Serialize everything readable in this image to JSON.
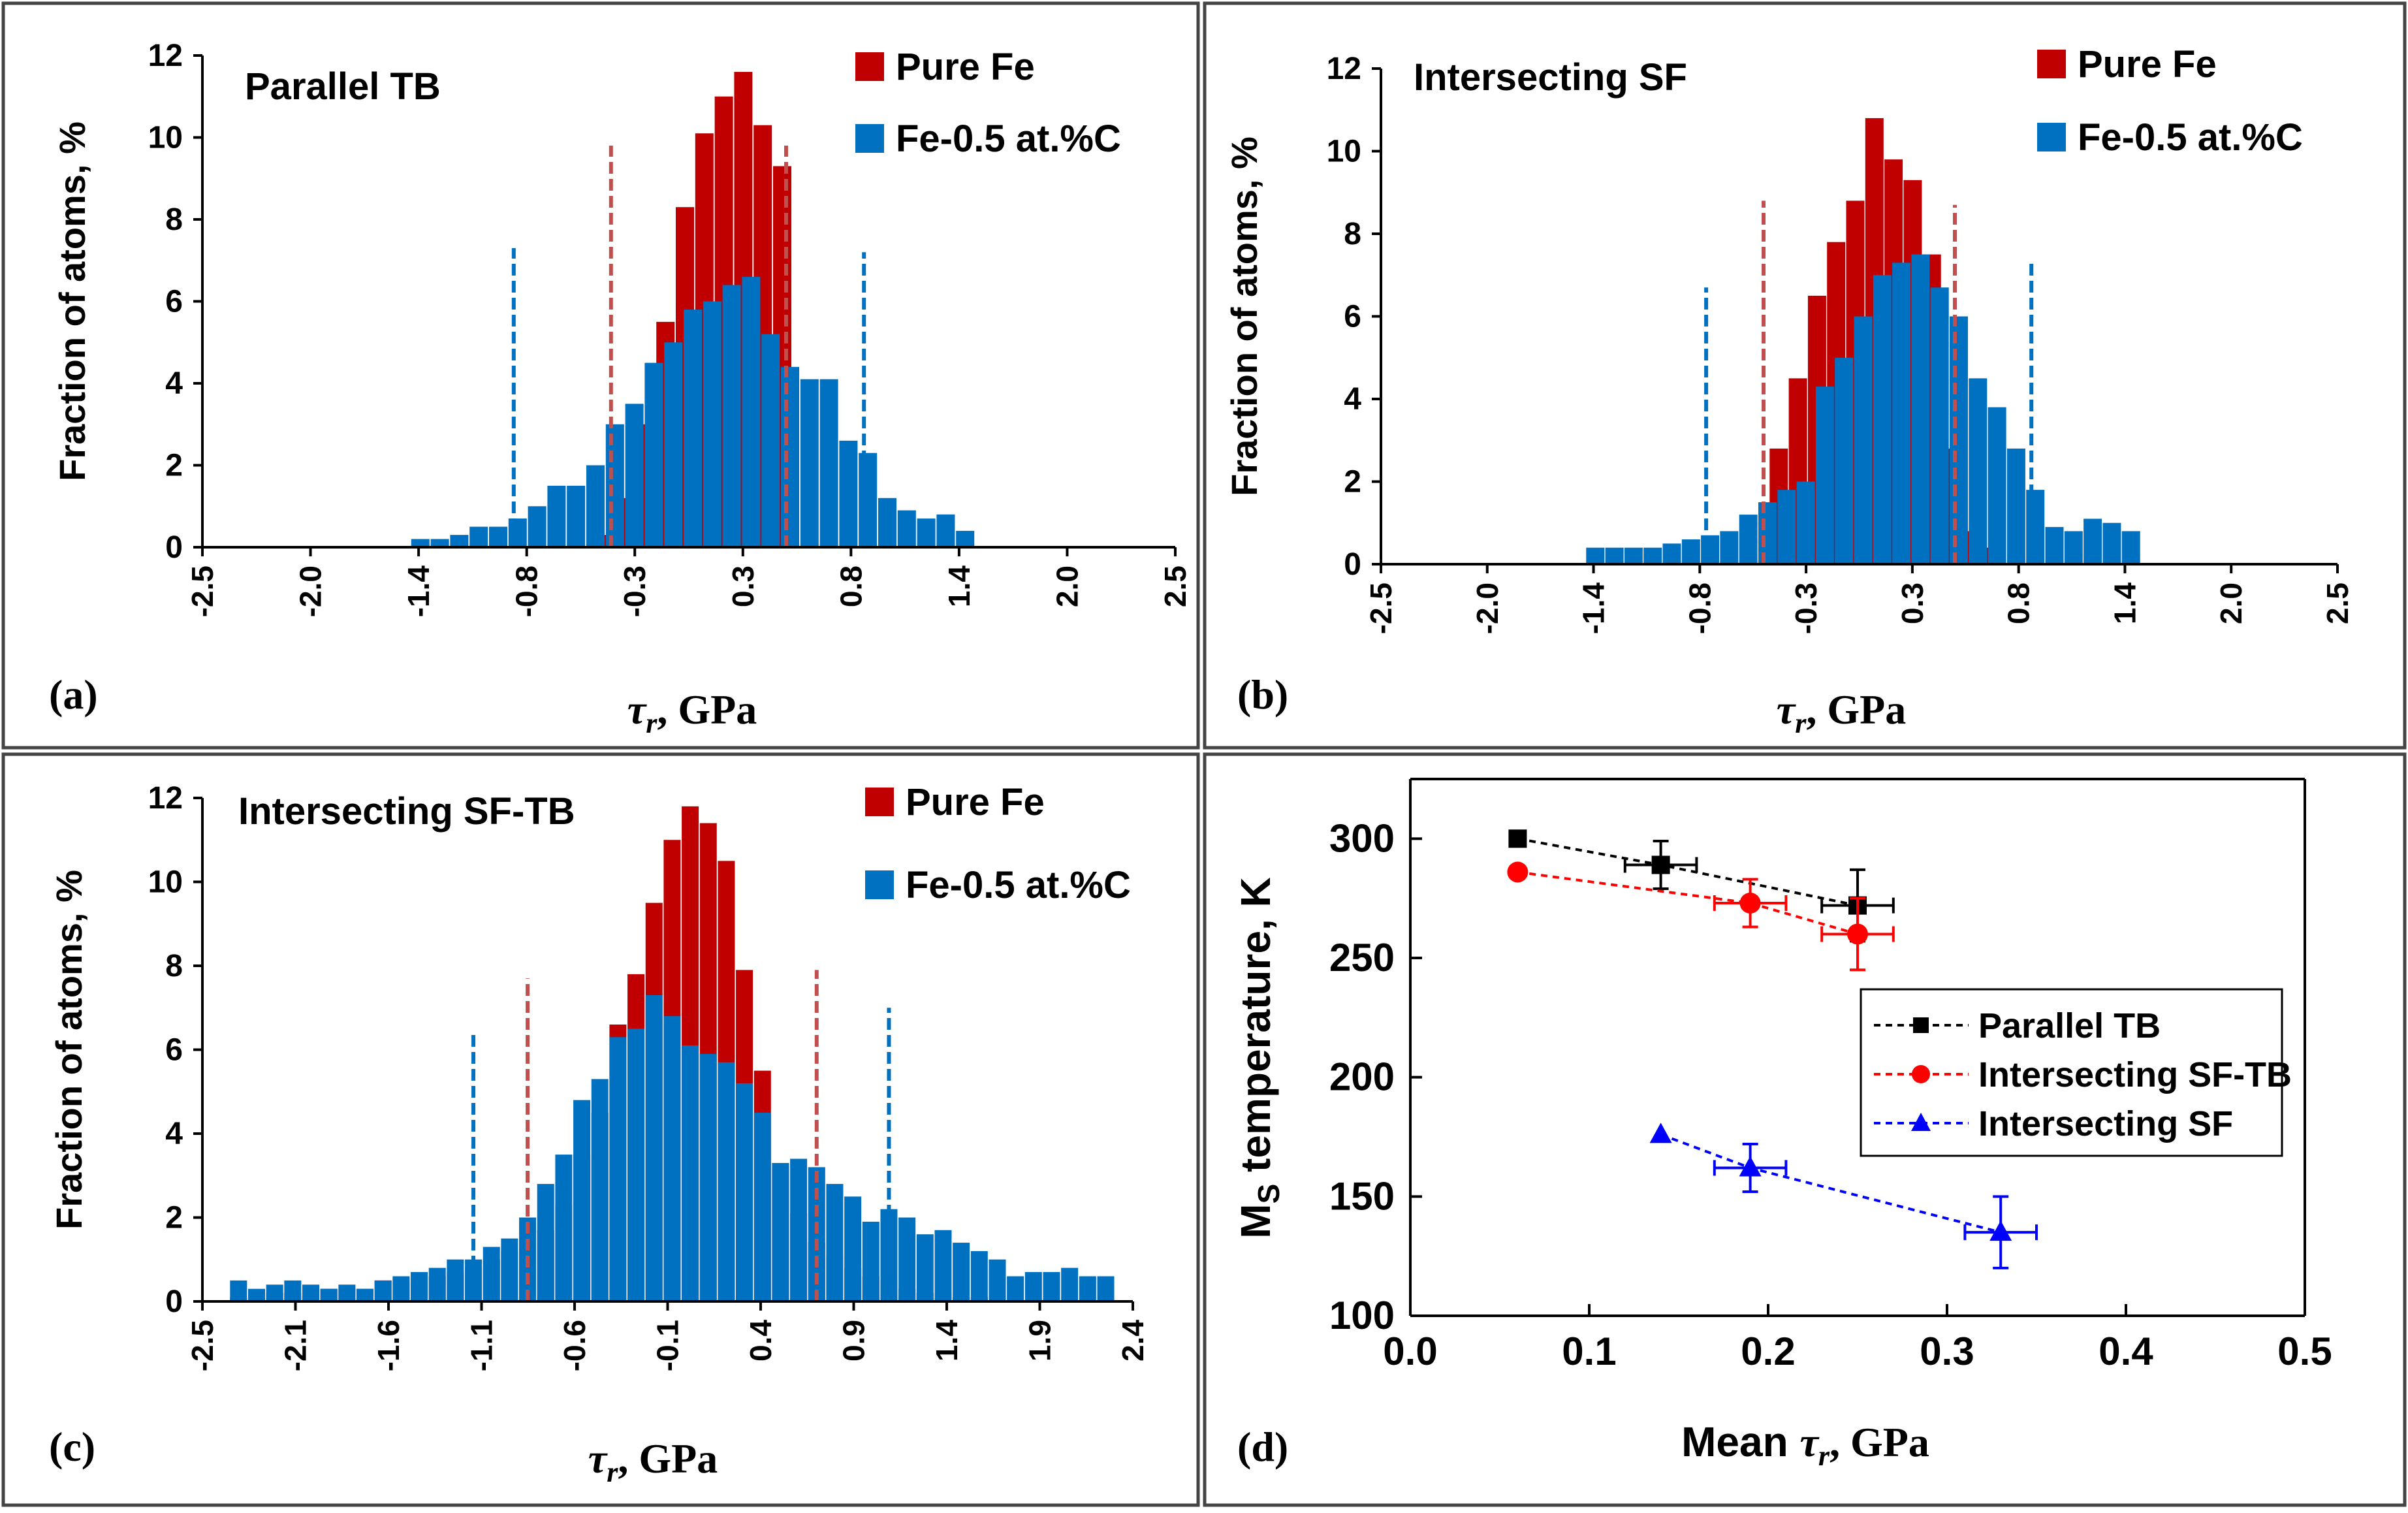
{
  "colors": {
    "pure": "#C00000",
    "alloy": "#0070C0",
    "pure_dash": "#C0504D",
    "alloy_dash": "#0070C0",
    "frame": "#444444"
  },
  "chart_data": [
    {
      "panel": "(a)",
      "type": "bar",
      "title": "Parallel TB",
      "xlabel_sym": "τ",
      "xlabel_sub": "r",
      "xlabel_unit": ", GPa",
      "ylabel": "Fraction of atoms, %",
      "ylim": [
        0,
        12
      ],
      "yticks": [
        "0",
        "2",
        "4",
        "6",
        "8",
        "10",
        "12"
      ],
      "xticks": [
        "-2.5",
        "-2.0",
        "-1.4",
        "-0.8",
        "-0.3",
        "0.3",
        "0.8",
        "1.4",
        "2.0",
        "2.5"
      ],
      "legend": [
        "Pure Fe",
        "Fe-0.5 at.%C"
      ],
      "series": [
        {
          "name": "Pure Fe",
          "x": [
            -0.4,
            -0.3,
            -0.2,
            -0.1,
            0.0,
            0.1,
            0.2,
            0.3,
            0.4,
            0.5
          ],
          "values": [
            0.3,
            1.2,
            3.0,
            5.5,
            8.3,
            10.1,
            11.0,
            11.6,
            10.3,
            9.3
          ]
        },
        {
          "name": "Fe-0.5 at.%C",
          "x": [
            -1.4,
            -1.3,
            -1.2,
            -1.1,
            -1.0,
            -0.9,
            -0.8,
            -0.7,
            -0.6,
            -0.5,
            -0.4,
            -0.3,
            -0.2,
            -0.1,
            0.0,
            0.1,
            0.2,
            0.3,
            0.4,
            0.5,
            0.6,
            0.7,
            0.8,
            0.9,
            1.0,
            1.1,
            1.2,
            1.3,
            1.4
          ],
          "values": [
            0.2,
            0.2,
            0.3,
            0.5,
            0.5,
            0.7,
            1.0,
            1.5,
            1.5,
            2.0,
            3.0,
            3.5,
            4.5,
            5.0,
            5.8,
            6.0,
            6.4,
            6.6,
            5.2,
            4.4,
            4.1,
            4.1,
            2.6,
            2.3,
            1.2,
            0.9,
            0.7,
            0.8,
            0.4
          ]
        }
      ],
      "dashed_lines": [
        {
          "x": -0.4,
          "color": "pure",
          "top": 9.8
        },
        {
          "x": 0.5,
          "color": "pure",
          "top": 9.8
        },
        {
          "x": -0.9,
          "color": "alloy",
          "top": 7.3
        },
        {
          "x": 0.9,
          "color": "alloy",
          "top": 7.2
        }
      ]
    },
    {
      "panel": "(b)",
      "type": "bar",
      "title": "Intersecting SF",
      "xlabel_sym": "τ",
      "xlabel_sub": "r",
      "xlabel_unit": ", GPa",
      "ylabel": "Fraction of atoms, %",
      "ylim": [
        0,
        12
      ],
      "yticks": [
        "0",
        "2",
        "4",
        "6",
        "8",
        "10",
        "12"
      ],
      "xticks": [
        "-2.5",
        "-2.0",
        "-1.4",
        "-0.8",
        "-0.3",
        "0.3",
        "0.8",
        "1.4",
        "2.0",
        "2.5"
      ],
      "legend": [
        "Pure Fe",
        "Fe-0.5 at.%C"
      ],
      "series": [
        {
          "name": "Pure Fe",
          "x": [
            -0.4,
            -0.3,
            -0.2,
            -0.1,
            0.0,
            0.1,
            0.2,
            0.3,
            0.4,
            0.5,
            0.6,
            0.7
          ],
          "values": [
            2.8,
            4.5,
            6.5,
            7.8,
            8.8,
            10.8,
            9.8,
            9.3,
            7.5,
            2.8,
            0.8,
            0.4
          ]
        },
        {
          "name": "Fe-0.5 at.%C",
          "x": [
            -1.4,
            -1.3,
            -1.2,
            -1.1,
            -1.0,
            -0.9,
            -0.8,
            -0.7,
            -0.6,
            -0.5,
            -0.4,
            -0.3,
            -0.2,
            -0.1,
            0.0,
            0.1,
            0.2,
            0.3,
            0.4,
            0.5,
            0.6,
            0.7,
            0.8,
            0.9,
            1.0,
            1.1,
            1.2,
            1.3,
            1.4
          ],
          "values": [
            0.4,
            0.4,
            0.4,
            0.4,
            0.5,
            0.6,
            0.7,
            0.8,
            1.2,
            1.5,
            1.8,
            2.0,
            4.3,
            5.0,
            6.0,
            7.0,
            7.3,
            7.5,
            6.7,
            6.0,
            4.5,
            3.8,
            2.8,
            1.8,
            0.9,
            0.8,
            1.1,
            1.0,
            0.8
          ]
        }
      ],
      "dashed_lines": [
        {
          "x": -0.5,
          "color": "pure",
          "top": 8.8
        },
        {
          "x": 0.5,
          "color": "pure",
          "top": 8.7
        },
        {
          "x": -0.8,
          "color": "alloy",
          "top": 6.7
        },
        {
          "x": 0.9,
          "color": "alloy",
          "top": 7.3
        }
      ]
    },
    {
      "panel": "(c)",
      "type": "bar",
      "title": "Intersecting SF-TB",
      "xlabel_sym": "τ",
      "xlabel_sub": "r",
      "xlabel_unit": ", GPa",
      "ylabel": "Fraction of atoms, %",
      "ylim": [
        0,
        12
      ],
      "yticks": [
        "0",
        "2",
        "4",
        "6",
        "8",
        "10",
        "12"
      ],
      "xticks": [
        "-2.5",
        "-2.1",
        "-1.6",
        "-1.1",
        "-0.6",
        "-0.1",
        "0.4",
        "0.9",
        "1.4",
        "1.9",
        "2.4"
      ],
      "legend": [
        "Pure Fe",
        "Fe-0.5 at.%C"
      ],
      "series": [
        {
          "name": "Pure Fe",
          "x": [
            -2.4,
            -2.3,
            -2.2,
            -2.1,
            -2.0,
            -1.9,
            -1.8,
            -1.7,
            -1.6,
            -1.5,
            -1.4,
            -1.3,
            -1.2,
            -1.1,
            -1.0,
            -0.9,
            -0.8,
            -0.7,
            -0.6,
            -0.5,
            -0.4,
            -0.3,
            -0.2,
            -0.1,
            0.0,
            0.1,
            0.2,
            0.3,
            0.4,
            0.5,
            0.6,
            0.7,
            0.8,
            0.9,
            1.0,
            1.1,
            1.2,
            1.3,
            1.4,
            1.5,
            1.6,
            1.7,
            1.8
          ],
          "values": [
            0.1,
            0.2,
            0.2,
            0.2,
            0.2,
            0.3,
            0.3,
            0.3,
            0.5,
            0.5,
            0.6,
            0.6,
            0.7,
            0.8,
            1.0,
            1.2,
            1.5,
            1.7,
            2.3,
            3.5,
            4.5,
            6.6,
            7.8,
            9.5,
            11.0,
            11.8,
            11.4,
            10.5,
            7.9,
            5.5,
            3.2,
            2.1,
            1.4,
            1.1,
            0.8,
            0.6,
            0.5,
            0.3,
            0.2,
            0.2,
            0.1,
            0.1,
            0.1
          ]
        },
        {
          "name": "Fe-0.5 at.%C",
          "x": [
            -2.4,
            -2.3,
            -2.2,
            -2.1,
            -2.0,
            -1.9,
            -1.8,
            -1.7,
            -1.6,
            -1.5,
            -1.4,
            -1.3,
            -1.2,
            -1.1,
            -1.0,
            -0.9,
            -0.8,
            -0.7,
            -0.6,
            -0.5,
            -0.4,
            -0.3,
            -0.2,
            -0.1,
            0.0,
            0.1,
            0.2,
            0.3,
            0.4,
            0.5,
            0.6,
            0.7,
            0.8,
            0.9,
            1.0,
            1.1,
            1.2,
            1.3,
            1.4,
            1.5,
            1.6,
            1.7,
            1.8,
            1.9,
            2.0,
            2.1,
            2.2,
            2.3,
            2.4
          ],
          "values": [
            0.5,
            0.3,
            0.4,
            0.5,
            0.4,
            0.3,
            0.4,
            0.3,
            0.5,
            0.6,
            0.7,
            0.8,
            1.0,
            1.0,
            1.3,
            1.5,
            2.0,
            2.8,
            3.5,
            4.8,
            5.3,
            6.3,
            6.5,
            7.3,
            6.8,
            6.1,
            5.9,
            5.7,
            5.2,
            4.5,
            3.3,
            3.4,
            3.2,
            2.8,
            2.5,
            1.9,
            2.2,
            2.0,
            1.6,
            1.7,
            1.4,
            1.2,
            1.0,
            0.6,
            0.7,
            0.7,
            0.8,
            0.6,
            0.6
          ]
        }
      ],
      "dashed_lines": [
        {
          "x": -0.8,
          "color": "pure",
          "top": 7.7
        },
        {
          "x": 0.8,
          "color": "pure",
          "top": 7.9
        },
        {
          "x": -1.1,
          "color": "alloy",
          "top": 6.4
        },
        {
          "x": 1.2,
          "color": "alloy",
          "top": 7.0
        }
      ]
    },
    {
      "panel": "(d)",
      "type": "scatter",
      "xlabel_pre": "Mean ",
      "xlabel_sym": "τ",
      "xlabel_sub": "r",
      "xlabel_unit": ", GPa",
      "ylabel_main": "M",
      "ylabel_sub": "S",
      "ylabel_rest": " temperature, K",
      "xlim": [
        0.0,
        0.5
      ],
      "ylim": [
        100,
        325
      ],
      "xticks": [
        "0.0",
        "0.1",
        "0.2",
        "0.3",
        "0.4",
        "0.5"
      ],
      "yticks": [
        "100",
        "150",
        "200",
        "250",
        "300"
      ],
      "legend_position": "center-right",
      "series": [
        {
          "name": "Parallel TB",
          "color": "#000000",
          "marker": "square",
          "x": [
            0.06,
            0.14,
            0.25
          ],
          "y": [
            300,
            289,
            272
          ],
          "yerr": [
            0,
            10,
            15
          ],
          "xerr": [
            0,
            0.02,
            0.02
          ]
        },
        {
          "name": "Intersecting SF-TB",
          "color": "#FF0000",
          "marker": "circle",
          "x": [
            0.06,
            0.19,
            0.25
          ],
          "y": [
            286,
            273,
            260
          ],
          "yerr": [
            0,
            10,
            15
          ],
          "xerr": [
            0,
            0.02,
            0.02
          ]
        },
        {
          "name": "Intersecting SF",
          "color": "#0000FF",
          "marker": "triangle",
          "x": [
            0.14,
            0.19,
            0.33
          ],
          "y": [
            176,
            162,
            135
          ],
          "yerr": [
            0,
            10,
            15
          ],
          "xerr": [
            0,
            0.02,
            0.02
          ]
        }
      ]
    }
  ]
}
